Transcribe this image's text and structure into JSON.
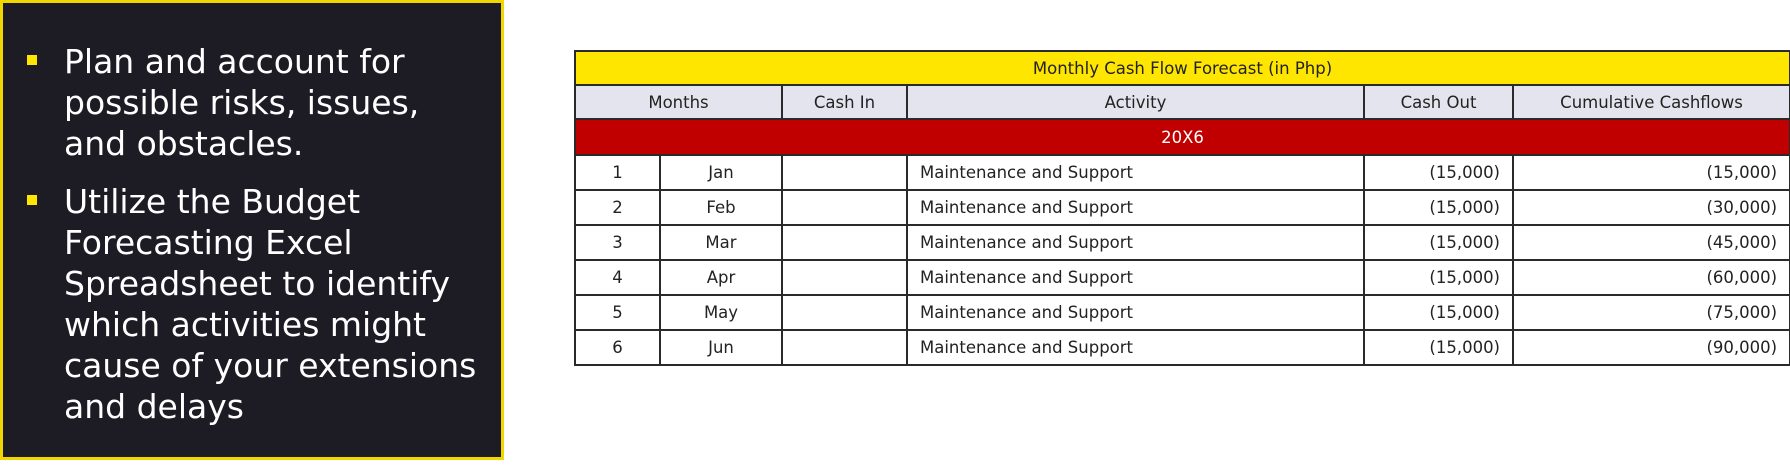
{
  "panel": {
    "bullets": [
      "Plan and account for possible risks, issues, and obstacles.",
      "Utilize the Budget Forecasting Excel Spreadsheet to identify which activities might cause of your extensions and delays"
    ]
  },
  "table": {
    "title": "Monthly Cash Flow Forecast (in Php)",
    "headers": {
      "months": "Months",
      "cash_in": "Cash In",
      "activity": "Activity",
      "cash_out": "Cash Out",
      "cumulative": "Cumulative Cashflows"
    },
    "year_label": "20X6",
    "rows": [
      {
        "num": "1",
        "month": "Jan",
        "cash_in": "",
        "activity": "Maintenance and Support",
        "cash_out": "(15,000)",
        "cumulative": "(15,000)"
      },
      {
        "num": "2",
        "month": "Feb",
        "cash_in": "",
        "activity": "Maintenance and Support",
        "cash_out": "(15,000)",
        "cumulative": "(30,000)"
      },
      {
        "num": "3",
        "month": "Mar",
        "cash_in": "",
        "activity": "Maintenance and Support",
        "cash_out": "(15,000)",
        "cumulative": "(45,000)"
      },
      {
        "num": "4",
        "month": "Apr",
        "cash_in": "",
        "activity": "Maintenance and Support",
        "cash_out": "(15,000)",
        "cumulative": "(60,000)"
      },
      {
        "num": "5",
        "month": "May",
        "cash_in": "",
        "activity": "Maintenance and Support",
        "cash_out": "(15,000)",
        "cumulative": "(75,000)"
      },
      {
        "num": "6",
        "month": "Jun",
        "cash_in": "",
        "activity": "Maintenance and Support",
        "cash_out": "(15,000)",
        "cumulative": "(90,000)"
      }
    ]
  },
  "colors": {
    "panel_background": "#1d1b24",
    "accent_yellow": "#ffe600",
    "year_band_red": "#c00000",
    "header_gray": "#e4e4ee"
  }
}
